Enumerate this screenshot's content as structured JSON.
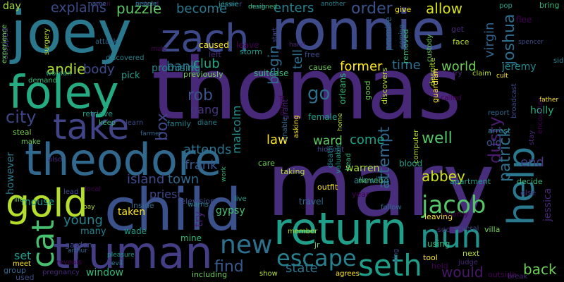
{
  "words": [
    {
      "text": "thomas",
      "color": "#482878"
    },
    {
      "text": "mary",
      "color": "#472d7b"
    },
    {
      "text": "ronnie",
      "color": "#3e4a89"
    },
    {
      "text": "joey",
      "color": "#2a788e"
    },
    {
      "text": "child",
      "color": "#3b518b"
    },
    {
      "text": "return",
      "color": "#1f9e89"
    },
    {
      "text": "theodore",
      "color": "#31688e"
    },
    {
      "text": "truman",
      "color": "#433e85"
    },
    {
      "text": "zach",
      "color": "#3e4989"
    },
    {
      "text": "foley",
      "color": "#25ab82"
    },
    {
      "text": "gold",
      "color": "#b5de2b"
    },
    {
      "text": "help",
      "color": "#2a788e"
    },
    {
      "text": "take",
      "color": "#414487"
    },
    {
      "text": "cat",
      "color": "#46c06f"
    },
    {
      "text": "nun",
      "color": "#21918c"
    },
    {
      "text": "seth",
      "color": "#1f9e89"
    },
    {
      "text": "new",
      "color": "#2c728e"
    },
    {
      "text": "escape",
      "color": "#277f8e"
    },
    {
      "text": "jacob",
      "color": "#54c568"
    },
    {
      "text": "explains",
      "color": "#3e4a89"
    },
    {
      "text": "puzzle",
      "color": "#5ec962"
    },
    {
      "text": "become",
      "color": "#2a778e"
    },
    {
      "text": "enters",
      "color": "#26828e"
    },
    {
      "text": "order",
      "color": "#3b528b"
    },
    {
      "text": "allow",
      "color": "#d8e219"
    },
    {
      "text": "virgin",
      "color": "#32648e"
    },
    {
      "text": "joshua",
      "color": "#2e6e8e"
    },
    {
      "text": "bank",
      "color": "#2b748e"
    },
    {
      "text": "begin",
      "color": "#306a8e"
    },
    {
      "text": "andie",
      "color": "#addc30"
    },
    {
      "text": "body",
      "color": "#3e4a89"
    },
    {
      "text": "club",
      "color": "#22a884"
    },
    {
      "text": "tell",
      "color": "#2e6f8e"
    },
    {
      "text": "former",
      "color": "#fde725"
    },
    {
      "text": "time",
      "color": "#2e6e8e"
    },
    {
      "text": "world",
      "color": "#6ece58"
    },
    {
      "text": "jeremy",
      "color": "#23888e"
    },
    {
      "text": "rob",
      "color": "#3b528b"
    },
    {
      "text": "go",
      "color": "#2d708e"
    },
    {
      "text": "box",
      "color": "#3f4788"
    },
    {
      "text": "gang",
      "color": "#46337f"
    },
    {
      "text": "malcolm",
      "color": "#21918c"
    },
    {
      "text": "city",
      "color": "#3f4788"
    },
    {
      "text": "dusty",
      "color": "#4a1c6f"
    },
    {
      "text": "patrick",
      "color": "#2c728e"
    },
    {
      "text": "holly",
      "color": "#29af7f"
    },
    {
      "text": "attempt",
      "color": "#31678e"
    },
    {
      "text": "law",
      "color": "#fde725"
    },
    {
      "text": "ward",
      "color": "#5ec962"
    },
    {
      "text": "come",
      "color": "#1fa187"
    },
    {
      "text": "well",
      "color": "#52c569"
    },
    {
      "text": "end",
      "color": "#453882"
    },
    {
      "text": "old",
      "color": "#3b528b"
    },
    {
      "text": "frank",
      "color": "#38588c"
    },
    {
      "text": "attends",
      "color": "#2d718e"
    },
    {
      "text": "island",
      "color": "#3e4989"
    },
    {
      "text": "town",
      "color": "#31688e"
    },
    {
      "text": "abbey",
      "color": "#d2e21b"
    },
    {
      "text": "warren",
      "color": "#addc30"
    },
    {
      "text": "try",
      "color": "#482576"
    },
    {
      "text": "young",
      "color": "#26828e"
    },
    {
      "text": "find",
      "color": "#38598c"
    },
    {
      "text": "state",
      "color": "#2c738e"
    },
    {
      "text": "would",
      "color": "#48186a"
    },
    {
      "text": "back",
      "color": "#6ece58"
    },
    {
      "text": "set",
      "color": "#1f9a8a"
    },
    {
      "text": "mouse",
      "color": "#1f9a8a"
    },
    {
      "text": "jessica",
      "color": "#482878"
    },
    {
      "text": "however",
      "color": "#297b8e"
    },
    {
      "text": "gypsy",
      "color": "#46c06f"
    },
    {
      "text": "priest",
      "color": "#3f4788"
    },
    {
      "text": "stopped",
      "color": "#443983"
    },
    {
      "text": "day",
      "color": "#a2da37"
    },
    {
      "text": "steal",
      "color": "#7ad151"
    }
  ],
  "minor_words": [
    "orphan",
    "instead",
    "viewer",
    "much",
    "another",
    "pop",
    "bring",
    "experience",
    "surgery",
    "give",
    "flee",
    "get",
    "spencer",
    "attack",
    "discovered",
    "storm",
    "removed",
    "custody",
    "face",
    "caused",
    "leave",
    "left",
    "free",
    "promise",
    "sid",
    "woman",
    "demand",
    "cause",
    "claim",
    "cult",
    "male",
    "hand",
    "start",
    "coming",
    "promising",
    "pick",
    "suitcase",
    "previously",
    "despite",
    "father",
    "called",
    "carry",
    "learn",
    "farmer",
    "diane",
    "female",
    "orleans",
    "good",
    "discovers",
    "guardian",
    "encounter",
    "stay",
    "broadcast",
    "report",
    "arrest",
    "retrieve",
    "keep",
    "make",
    "home",
    "asking",
    "guard",
    "grant",
    "hideout",
    "unable",
    "family",
    "apartment",
    "decide",
    "life",
    "bay",
    "taken",
    "local",
    "also",
    "television",
    "travel",
    "death",
    "valuable",
    "head",
    "named",
    "computer",
    "leaving",
    "shortly",
    "else",
    "lead",
    "inside",
    "warns",
    "live",
    "work",
    "care",
    "taking",
    "outfit",
    "year",
    "soon",
    "several",
    "follow",
    "allowing",
    "blood",
    "using",
    "villa",
    "next",
    "tool",
    "held",
    "judge",
    "garden",
    "arthur",
    "many",
    "wade",
    "mine",
    "jr",
    "member",
    "meet",
    "reveals",
    "pregnancy",
    "used",
    "group",
    "evil",
    "pleasure",
    "window",
    "including",
    "show",
    "agrees",
    "outside",
    "break",
    "king",
    "name",
    "people",
    "jessie",
    "designed"
  ]
}
